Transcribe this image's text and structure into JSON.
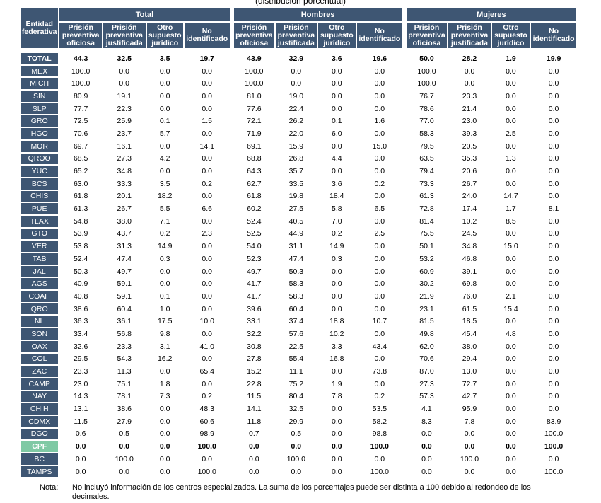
{
  "caption": "(distribución porcentual)",
  "header": {
    "entity_label": "Entidad federativa",
    "groups": [
      "Total",
      "Hombres",
      "Mujeres"
    ],
    "subcolumns": [
      "Prisión preventiva oficiosa",
      "Prisión preventiva justificada",
      "Otro supuesto jurídico",
      "No identificado"
    ]
  },
  "rows": [
    {
      "entity": "TOTAL",
      "values": [
        "44.3",
        "32.5",
        "3.5",
        "19.7",
        "43.9",
        "32.9",
        "3.6",
        "19.6",
        "50.0",
        "28.2",
        "1.9",
        "19.9"
      ]
    },
    {
      "entity": "MEX",
      "values": [
        "100.0",
        "0.0",
        "0.0",
        "0.0",
        "100.0",
        "0.0",
        "0.0",
        "0.0",
        "100.0",
        "0.0",
        "0.0",
        "0.0"
      ]
    },
    {
      "entity": "MICH",
      "values": [
        "100.0",
        "0.0",
        "0.0",
        "0.0",
        "100.0",
        "0.0",
        "0.0",
        "0.0",
        "100.0",
        "0.0",
        "0.0",
        "0.0"
      ]
    },
    {
      "entity": "SIN",
      "values": [
        "80.9",
        "19.1",
        "0.0",
        "0.0",
        "81.0",
        "19.0",
        "0.0",
        "0.0",
        "76.7",
        "23.3",
        "0.0",
        "0.0"
      ]
    },
    {
      "entity": "SLP",
      "values": [
        "77.7",
        "22.3",
        "0.0",
        "0.0",
        "77.6",
        "22.4",
        "0.0",
        "0.0",
        "78.6",
        "21.4",
        "0.0",
        "0.0"
      ]
    },
    {
      "entity": "GRO",
      "values": [
        "72.5",
        "25.9",
        "0.1",
        "1.5",
        "72.1",
        "26.2",
        "0.1",
        "1.6",
        "77.0",
        "23.0",
        "0.0",
        "0.0"
      ]
    },
    {
      "entity": "HGO",
      "values": [
        "70.6",
        "23.7",
        "5.7",
        "0.0",
        "71.9",
        "22.0",
        "6.0",
        "0.0",
        "58.3",
        "39.3",
        "2.5",
        "0.0"
      ]
    },
    {
      "entity": "MOR",
      "values": [
        "69.7",
        "16.1",
        "0.0",
        "14.1",
        "69.1",
        "15.9",
        "0.0",
        "15.0",
        "79.5",
        "20.5",
        "0.0",
        "0.0"
      ]
    },
    {
      "entity": "QROO",
      "values": [
        "68.5",
        "27.3",
        "4.2",
        "0.0",
        "68.8",
        "26.8",
        "4.4",
        "0.0",
        "63.5",
        "35.3",
        "1.3",
        "0.0"
      ]
    },
    {
      "entity": "YUC",
      "values": [
        "65.2",
        "34.8",
        "0.0",
        "0.0",
        "64.3",
        "35.7",
        "0.0",
        "0.0",
        "79.4",
        "20.6",
        "0.0",
        "0.0"
      ]
    },
    {
      "entity": "BCS",
      "values": [
        "63.0",
        "33.3",
        "3.5",
        "0.2",
        "62.7",
        "33.5",
        "3.6",
        "0.2",
        "73.3",
        "26.7",
        "0.0",
        "0.0"
      ]
    },
    {
      "entity": "CHIS",
      "values": [
        "61.8",
        "20.1",
        "18.2",
        "0.0",
        "61.8",
        "19.8",
        "18.4",
        "0.0",
        "61.3",
        "24.0",
        "14.7",
        "0.0"
      ]
    },
    {
      "entity": "PUE",
      "values": [
        "61.3",
        "26.7",
        "5.5",
        "6.6",
        "60.2",
        "27.5",
        "5.8",
        "6.5",
        "72.8",
        "17.4",
        "1.7",
        "8.1"
      ]
    },
    {
      "entity": "TLAX",
      "values": [
        "54.8",
        "38.0",
        "7.1",
        "0.0",
        "52.4",
        "40.5",
        "7.0",
        "0.0",
        "81.4",
        "10.2",
        "8.5",
        "0.0"
      ]
    },
    {
      "entity": "GTO",
      "values": [
        "53.9",
        "43.7",
        "0.2",
        "2.3",
        "52.5",
        "44.9",
        "0.2",
        "2.5",
        "75.5",
        "24.5",
        "0.0",
        "0.0"
      ]
    },
    {
      "entity": "VER",
      "values": [
        "53.8",
        "31.3",
        "14.9",
        "0.0",
        "54.0",
        "31.1",
        "14.9",
        "0.0",
        "50.1",
        "34.8",
        "15.0",
        "0.0"
      ]
    },
    {
      "entity": "TAB",
      "values": [
        "52.4",
        "47.4",
        "0.3",
        "0.0",
        "52.3",
        "47.4",
        "0.3",
        "0.0",
        "53.2",
        "46.8",
        "0.0",
        "0.0"
      ]
    },
    {
      "entity": "JAL",
      "values": [
        "50.3",
        "49.7",
        "0.0",
        "0.0",
        "49.7",
        "50.3",
        "0.0",
        "0.0",
        "60.9",
        "39.1",
        "0.0",
        "0.0"
      ]
    },
    {
      "entity": "AGS",
      "values": [
        "40.9",
        "59.1",
        "0.0",
        "0.0",
        "41.7",
        "58.3",
        "0.0",
        "0.0",
        "30.2",
        "69.8",
        "0.0",
        "0.0"
      ]
    },
    {
      "entity": "COAH",
      "values": [
        "40.8",
        "59.1",
        "0.1",
        "0.0",
        "41.7",
        "58.3",
        "0.0",
        "0.0",
        "21.9",
        "76.0",
        "2.1",
        "0.0"
      ]
    },
    {
      "entity": "QRO",
      "values": [
        "38.6",
        "60.4",
        "1.0",
        "0.0",
        "39.6",
        "60.4",
        "0.0",
        "0.0",
        "23.1",
        "61.5",
        "15.4",
        "0.0"
      ]
    },
    {
      "entity": "NL",
      "values": [
        "36.3",
        "36.1",
        "17.5",
        "10.0",
        "33.1",
        "37.4",
        "18.8",
        "10.7",
        "81.5",
        "18.5",
        "0.0",
        "0.0"
      ]
    },
    {
      "entity": "SON",
      "values": [
        "33.4",
        "56.8",
        "9.8",
        "0.0",
        "32.2",
        "57.6",
        "10.2",
        "0.0",
        "49.8",
        "45.4",
        "4.8",
        "0.0"
      ]
    },
    {
      "entity": "OAX",
      "values": [
        "32.6",
        "23.3",
        "3.1",
        "41.0",
        "30.8",
        "22.5",
        "3.3",
        "43.4",
        "62.0",
        "38.0",
        "0.0",
        "0.0"
      ]
    },
    {
      "entity": "COL",
      "values": [
        "29.5",
        "54.3",
        "16.2",
        "0.0",
        "27.8",
        "55.4",
        "16.8",
        "0.0",
        "70.6",
        "29.4",
        "0.0",
        "0.0"
      ]
    },
    {
      "entity": "ZAC",
      "values": [
        "23.3",
        "11.3",
        "0.0",
        "65.4",
        "15.2",
        "11.1",
        "0.0",
        "73.8",
        "87.0",
        "13.0",
        "0.0",
        "0.0"
      ]
    },
    {
      "entity": "CAMP",
      "values": [
        "23.0",
        "75.1",
        "1.8",
        "0.0",
        "22.8",
        "75.2",
        "1.9",
        "0.0",
        "27.3",
        "72.7",
        "0.0",
        "0.0"
      ]
    },
    {
      "entity": "NAY",
      "values": [
        "14.3",
        "78.1",
        "7.3",
        "0.2",
        "11.5",
        "80.4",
        "7.8",
        "0.2",
        "57.3",
        "42.7",
        "0.0",
        "0.0"
      ]
    },
    {
      "entity": "CHIH",
      "values": [
        "13.1",
        "38.6",
        "0.0",
        "48.3",
        "14.1",
        "32.5",
        "0.0",
        "53.5",
        "4.1",
        "95.9",
        "0.0",
        "0.0"
      ]
    },
    {
      "entity": "CDMX",
      "values": [
        "11.5",
        "27.9",
        "0.0",
        "60.6",
        "11.8",
        "29.9",
        "0.0",
        "58.2",
        "8.3",
        "7.8",
        "0.0",
        "83.9"
      ]
    },
    {
      "entity": "DGO",
      "values": [
        "0.6",
        "0.5",
        "0.0",
        "98.9",
        "0.7",
        "0.5",
        "0.0",
        "98.8",
        "0.0",
        "0.0",
        "0.0",
        "100.0"
      ]
    },
    {
      "entity": "CPF",
      "values": [
        "0.0",
        "0.0",
        "0.0",
        "100.0",
        "0.0",
        "0.0",
        "0.0",
        "100.0",
        "0.0",
        "0.0",
        "0.0",
        "100.0"
      ]
    },
    {
      "entity": "BC",
      "values": [
        "0.0",
        "100.0",
        "0.0",
        "0.0",
        "0.0",
        "100.0",
        "0.0",
        "0.0",
        "0.0",
        "100.0",
        "0.0",
        "0.0"
      ]
    },
    {
      "entity": "TAMPS",
      "values": [
        "0.0",
        "0.0",
        "0.0",
        "100.0",
        "0.0",
        "0.0",
        "0.0",
        "100.0",
        "0.0",
        "0.0",
        "0.0",
        "100.0"
      ]
    }
  ],
  "note": {
    "label": "Nota:",
    "text": "No incluyó información de los centros especializados. La suma de los porcentajes puede ser distinta a 100 debido al redondeo de los decimales."
  },
  "colors": {
    "header_bg": "#3e5673",
    "header_text": "#ffffff",
    "highlight_entity": "#7fc9a4"
  }
}
